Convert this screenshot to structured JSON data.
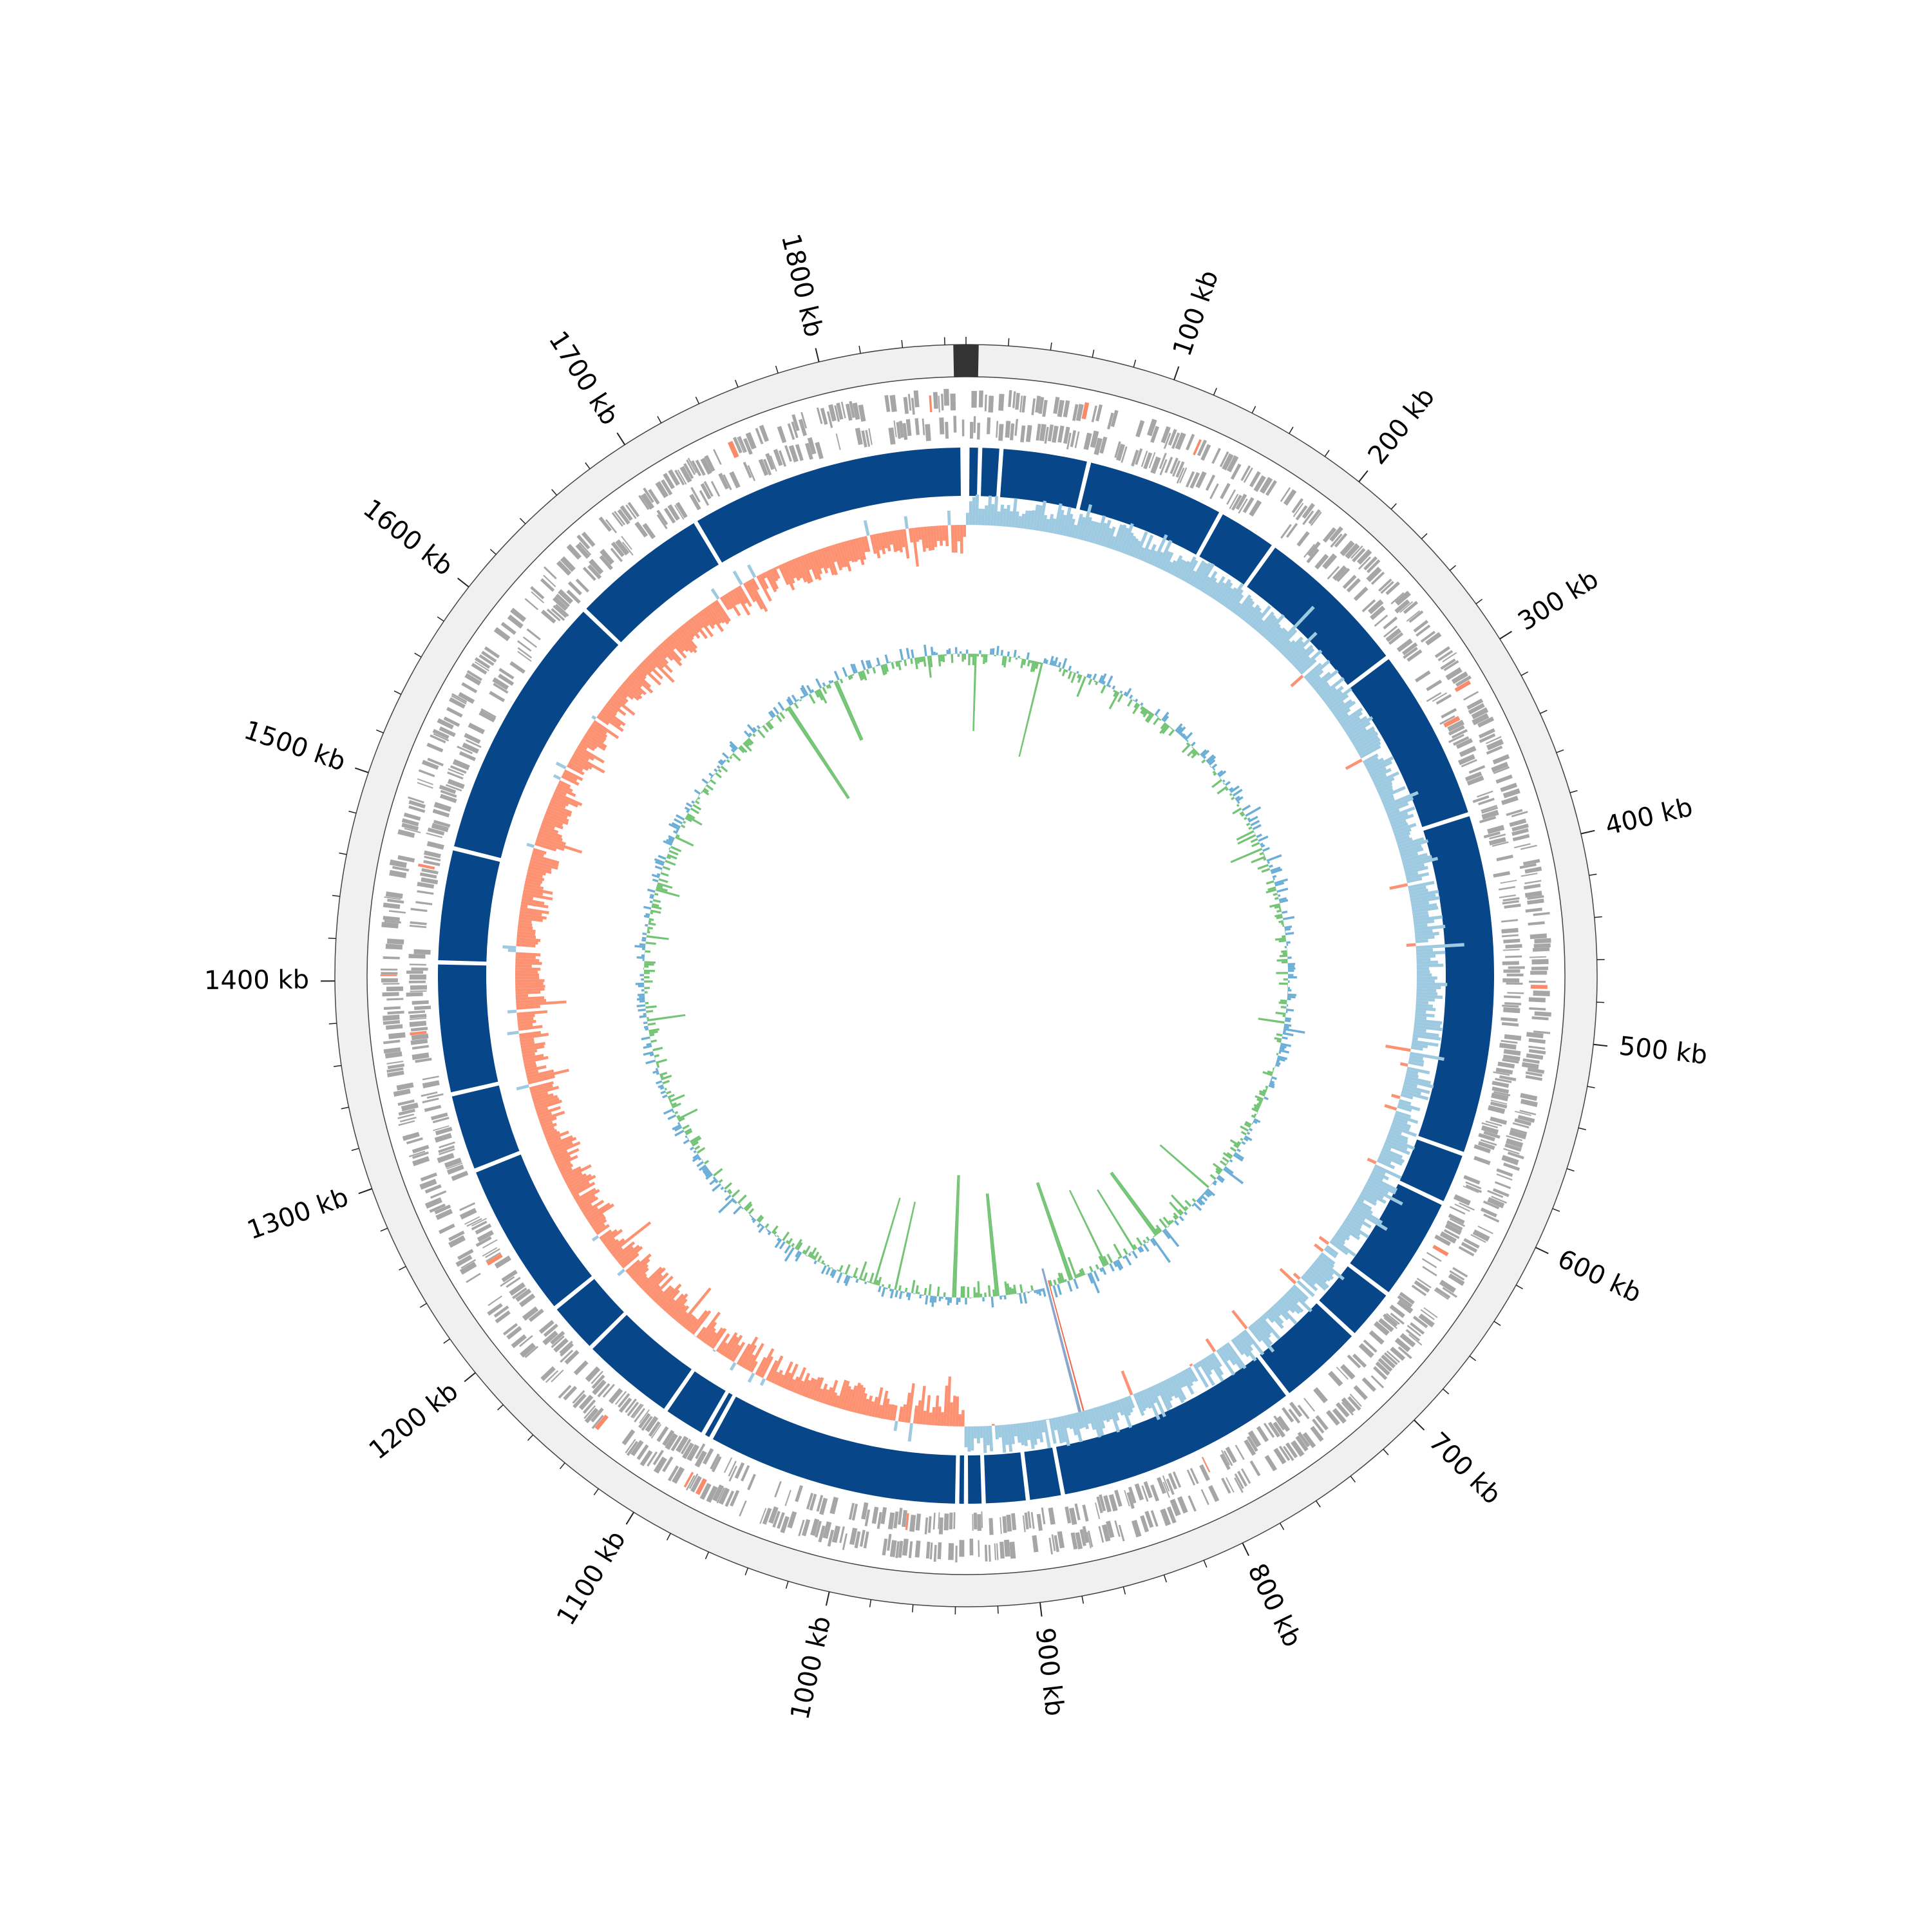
{
  "genome": {
    "unit": "kb",
    "tick_labels": [
      "100 kb",
      "200 kb",
      "300 kb",
      "400 kb",
      "500 kb",
      "600 kb",
      "700 kb",
      "800 kb",
      "900 kb",
      "1000 kb",
      "1100 kb",
      "1200 kb",
      "1300 kb",
      "1400 kb",
      "1500 kb",
      "1600 kb",
      "1700 kb",
      "1800 kb"
    ],
    "tick_values_kb": [
      100,
      200,
      300,
      400,
      500,
      600,
      700,
      800,
      900,
      1000,
      1100,
      1200,
      1300,
      1400,
      1500,
      1600,
      1700,
      1800
    ],
    "minor_tick_interval_kb": 20,
    "total_length_kb": 1870
  },
  "tracks": {
    "outer_ring_color": "#f0f0f0",
    "feature_color": "#a6a6a6",
    "feature_highlight_color": "#fb8a6a",
    "contig_color": "#08468a",
    "gc_skew_positive_color": "#9ecae1",
    "gc_skew_negative_color": "#fc9272",
    "gc_content_low_color": "#74c476",
    "gc_content_high_color": "#6baed6",
    "contig_gaps_kb": [
      8,
      20,
      70,
      150,
      185,
      275,
      375,
      570,
      600,
      660,
      690,
      740,
      880,
      900,
      925,
      935,
      940,
      1085,
      1090,
      1115,
      1170,
      1200,
      1290,
      1335,
      1410,
      1475,
      1630,
      1710
    ]
  }
}
